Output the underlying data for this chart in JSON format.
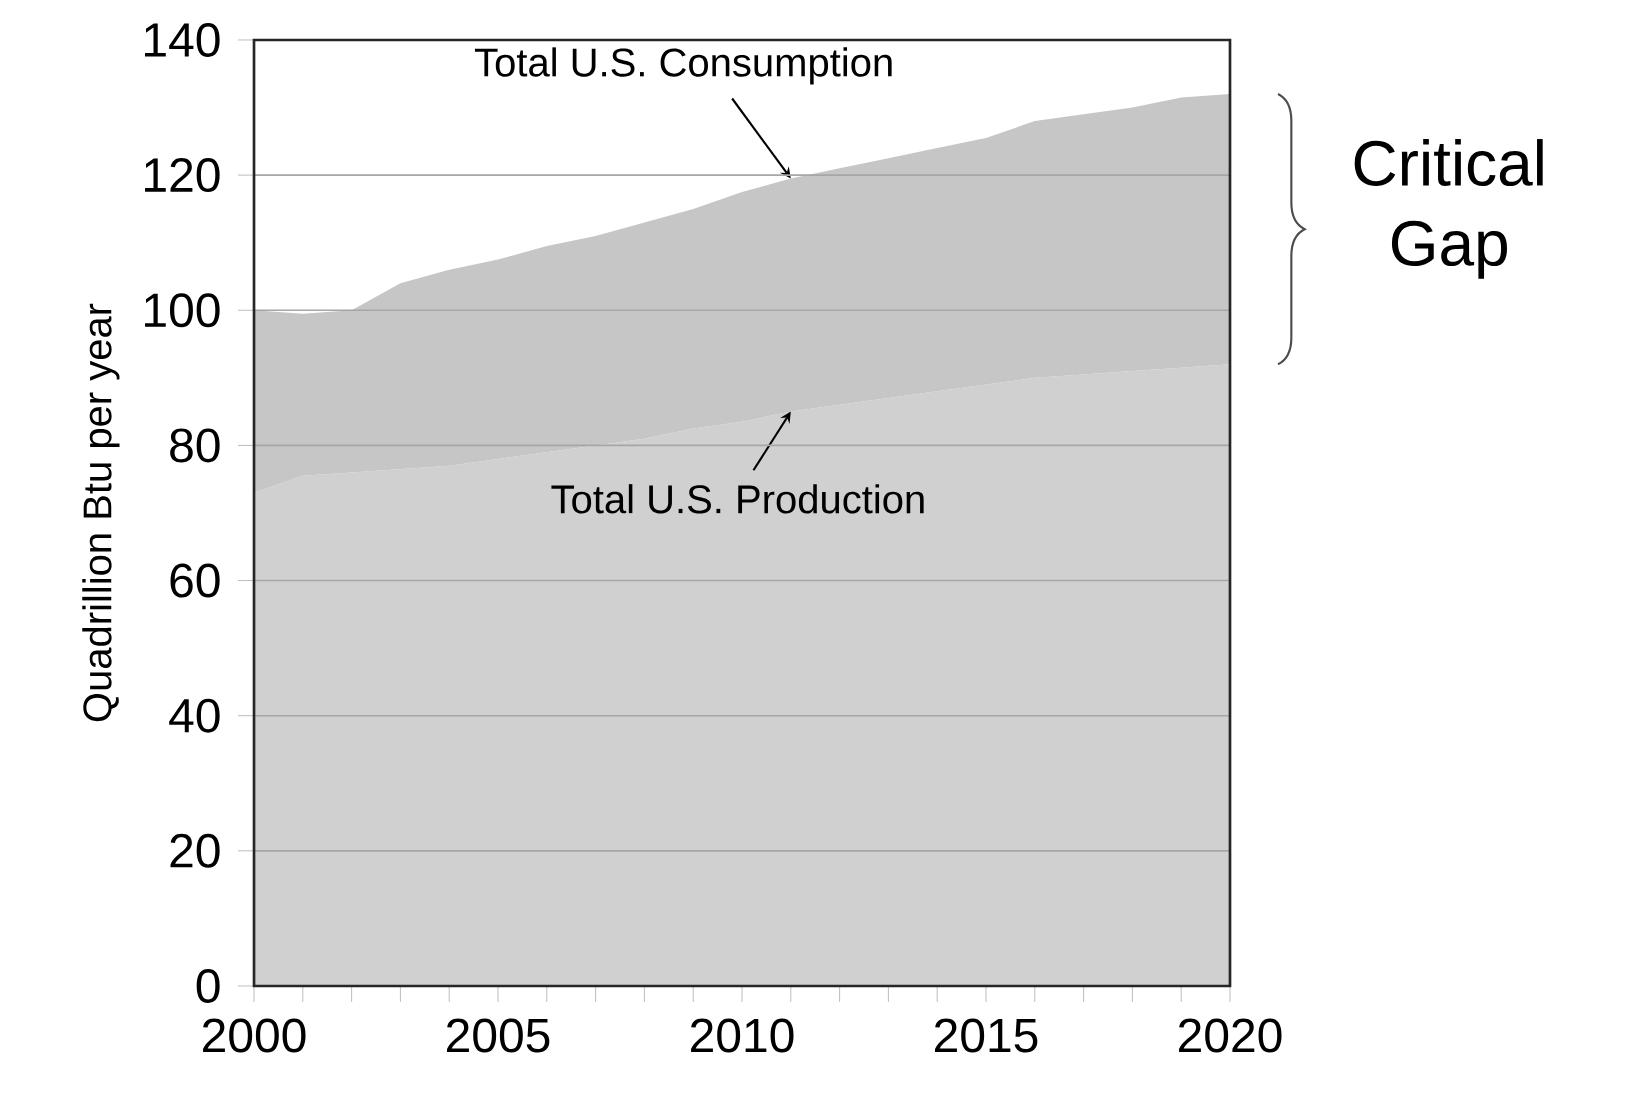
{
  "chart_data": {
    "type": "area",
    "stacked": true,
    "x": [
      2000,
      2001,
      2002,
      2003,
      2004,
      2005,
      2006,
      2007,
      2008,
      2009,
      2010,
      2011,
      2012,
      2013,
      2014,
      2015,
      2016,
      2017,
      2018,
      2019,
      2020
    ],
    "series": [
      {
        "color": "#d0d0d0",
        "values": [
          73,
          75.5,
          76,
          76.5,
          77,
          78,
          79,
          80,
          81,
          82.5,
          83.5,
          85,
          86,
          87,
          88,
          89,
          90,
          90.5,
          91,
          91.5,
          92
        ]
      },
      {
        "color": "#c6c6c6",
        "values": [
          27,
          24,
          24,
          27.5,
          29,
          29.5,
          30.5,
          31,
          32,
          32.5,
          34,
          34.5,
          35,
          35.5,
          36,
          36.5,
          38,
          38.5,
          39,
          40,
          40
        ]
      }
    ],
    "ylabel": "Quadrillion Btu per year",
    "annotations": [
      {
        "text": "Total U.S. Consumption",
        "x": 2011,
        "y": 119.5
      },
      {
        "text": "Total U.S. Production",
        "x": 2011,
        "y": 85
      },
      "Critical Gap"
    ],
    "xlim": [
      2000,
      2020
    ],
    "xticks": [
      2000,
      2005,
      2010,
      2015,
      2020
    ],
    "ylim": [
      0,
      140
    ],
    "yticks": [
      0,
      20,
      40,
      60,
      80,
      100,
      120,
      140
    ],
    "grid": "y"
  }
}
